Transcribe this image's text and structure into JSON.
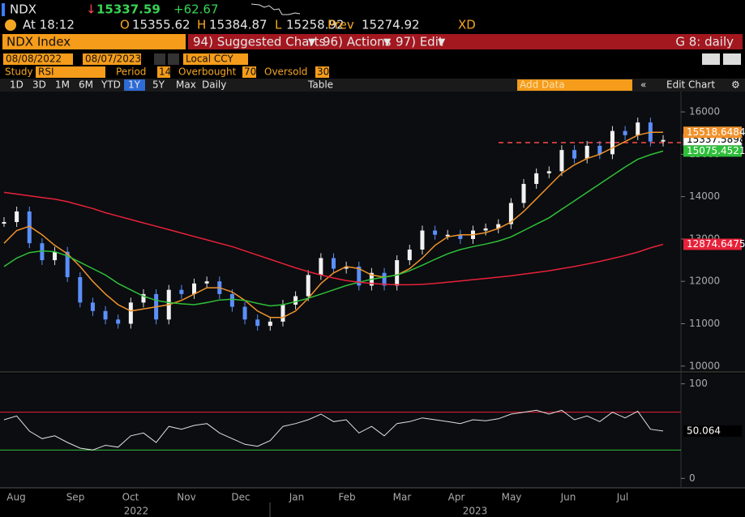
{
  "header": {
    "ticker": "NDX",
    "last": "15337.59",
    "change": "+62.67",
    "time": "At 18:12",
    "open_label": "O",
    "open": "15355.62",
    "high_label": "H",
    "high": "15384.87",
    "low_label": "L",
    "low": "15258.92",
    "prev_label": "Prev",
    "prev": 15274.92,
    "flag": "XD"
  },
  "toolbar": {
    "security": "NDX Index",
    "menus": [
      "94) Suggested Charts",
      "96) Actions",
      "97) Edit"
    ],
    "page": "G 8: daily"
  },
  "range": {
    "start": "08/08/2022",
    "end": "08/07/2023",
    "currency": "Local CCY"
  },
  "study": {
    "label": "Study",
    "name": "RSI",
    "period_label": "Period",
    "period": 14,
    "overbought_label": "Overbought",
    "overbought": 70,
    "oversold_label": "Oversold",
    "oversold": 30
  },
  "buttons": [
    "1D",
    "3D",
    "1M",
    "6M",
    "YTD",
    "1Y",
    "5Y",
    "Max",
    "Daily"
  ],
  "selected_button": "1Y",
  "table_button": "Table",
  "add_data": "Add Data",
  "edit_chart": "Edit Chart",
  "x_labels": [
    "Aug",
    "Sep",
    "Oct",
    "Nov",
    "Dec",
    "Jan",
    "Feb",
    "Mar",
    "Apr",
    "May",
    "Jun",
    "Jul"
  ],
  "year_labels": [
    "2022",
    "2023"
  ],
  "chart_data": [
    {
      "type": "line",
      "ylim": [
        9900,
        16480
      ],
      "yticks": [
        10000,
        11000,
        12000,
        13000,
        14000,
        15000,
        16000
      ],
      "grid": false,
      "series": [
        {
          "color": "#5b8ff9",
          "mark": "candle",
          "values": [
            13400,
            13650,
            12900,
            12500,
            12700,
            12100,
            11500,
            11300,
            11100,
            11000,
            11500,
            11700,
            11100,
            11800,
            11700,
            11950,
            12000,
            11700,
            11400,
            11100,
            10950,
            11050,
            11450,
            11650,
            12150,
            12550,
            12300,
            12350,
            11900,
            12200,
            11900,
            12500,
            12750,
            13200,
            13100,
            13100,
            13000,
            13200,
            13250,
            13350,
            13850,
            14300,
            14550,
            14600,
            15100,
            14900,
            15200,
            15000,
            15550,
            15450,
            15750,
            15300,
            15337.5898
          ]
        },
        {
          "color": "#f0922b",
          "values": [
            12900,
            13200,
            13300,
            13100,
            12850,
            12650,
            12350,
            12000,
            11700,
            11450,
            11300,
            11350,
            11400,
            11450,
            11550,
            11700,
            11850,
            11850,
            11750,
            11550,
            11300,
            11150,
            11150,
            11300,
            11600,
            11950,
            12200,
            12350,
            12300,
            12150,
            12100,
            12150,
            12300,
            12550,
            12850,
            13050,
            13100,
            13100,
            13150,
            13250,
            13400,
            13650,
            13950,
            14250,
            14550,
            14750,
            14900,
            15000,
            15150,
            15300,
            15450,
            15520,
            15518.6484
          ]
        },
        {
          "color": "#2fbf3a",
          "values": [
            12350,
            12550,
            12680,
            12720,
            12700,
            12600,
            12450,
            12300,
            12150,
            11950,
            11800,
            11650,
            11550,
            11500,
            11470,
            11450,
            11500,
            11560,
            11580,
            11550,
            11480,
            11420,
            11450,
            11520,
            11600,
            11700,
            11800,
            11900,
            11980,
            12050,
            12100,
            12150,
            12250,
            12380,
            12520,
            12650,
            12750,
            12820,
            12880,
            12950,
            13050,
            13200,
            13350,
            13500,
            13700,
            13900,
            14100,
            14300,
            14500,
            14700,
            14880,
            14990,
            15075.4521
          ]
        },
        {
          "color": "#e8213a",
          "values": [
            14100,
            14060,
            14020,
            13980,
            13940,
            13880,
            13800,
            13720,
            13620,
            13540,
            13460,
            13380,
            13300,
            13220,
            13140,
            13060,
            12980,
            12900,
            12820,
            12720,
            12620,
            12520,
            12420,
            12320,
            12230,
            12150,
            12080,
            12020,
            11980,
            11950,
            11930,
            11920,
            11920,
            11930,
            11950,
            11980,
            12010,
            12040,
            12070,
            12100,
            12130,
            12170,
            12210,
            12250,
            12300,
            12350,
            12410,
            12470,
            12540,
            12610,
            12690,
            12790,
            12874.6475
          ]
        }
      ]
    },
    {
      "type": "line",
      "ylim": [
        -10,
        110
      ],
      "yticks": [
        0,
        100
      ],
      "grid": false,
      "series": [
        {
          "color": "#e0e0e0",
          "values": [
            62,
            66,
            50,
            42,
            45,
            38,
            32,
            30,
            35,
            33,
            45,
            48,
            38,
            55,
            52,
            56,
            58,
            48,
            42,
            36,
            34,
            40,
            55,
            58,
            62,
            68,
            60,
            62,
            48,
            55,
            45,
            58,
            60,
            64,
            62,
            60,
            58,
            62,
            61,
            63,
            68,
            70,
            72,
            68,
            72,
            62,
            66,
            60,
            70,
            64,
            71,
            52,
            50.064
          ]
        }
      ]
    }
  ]
}
